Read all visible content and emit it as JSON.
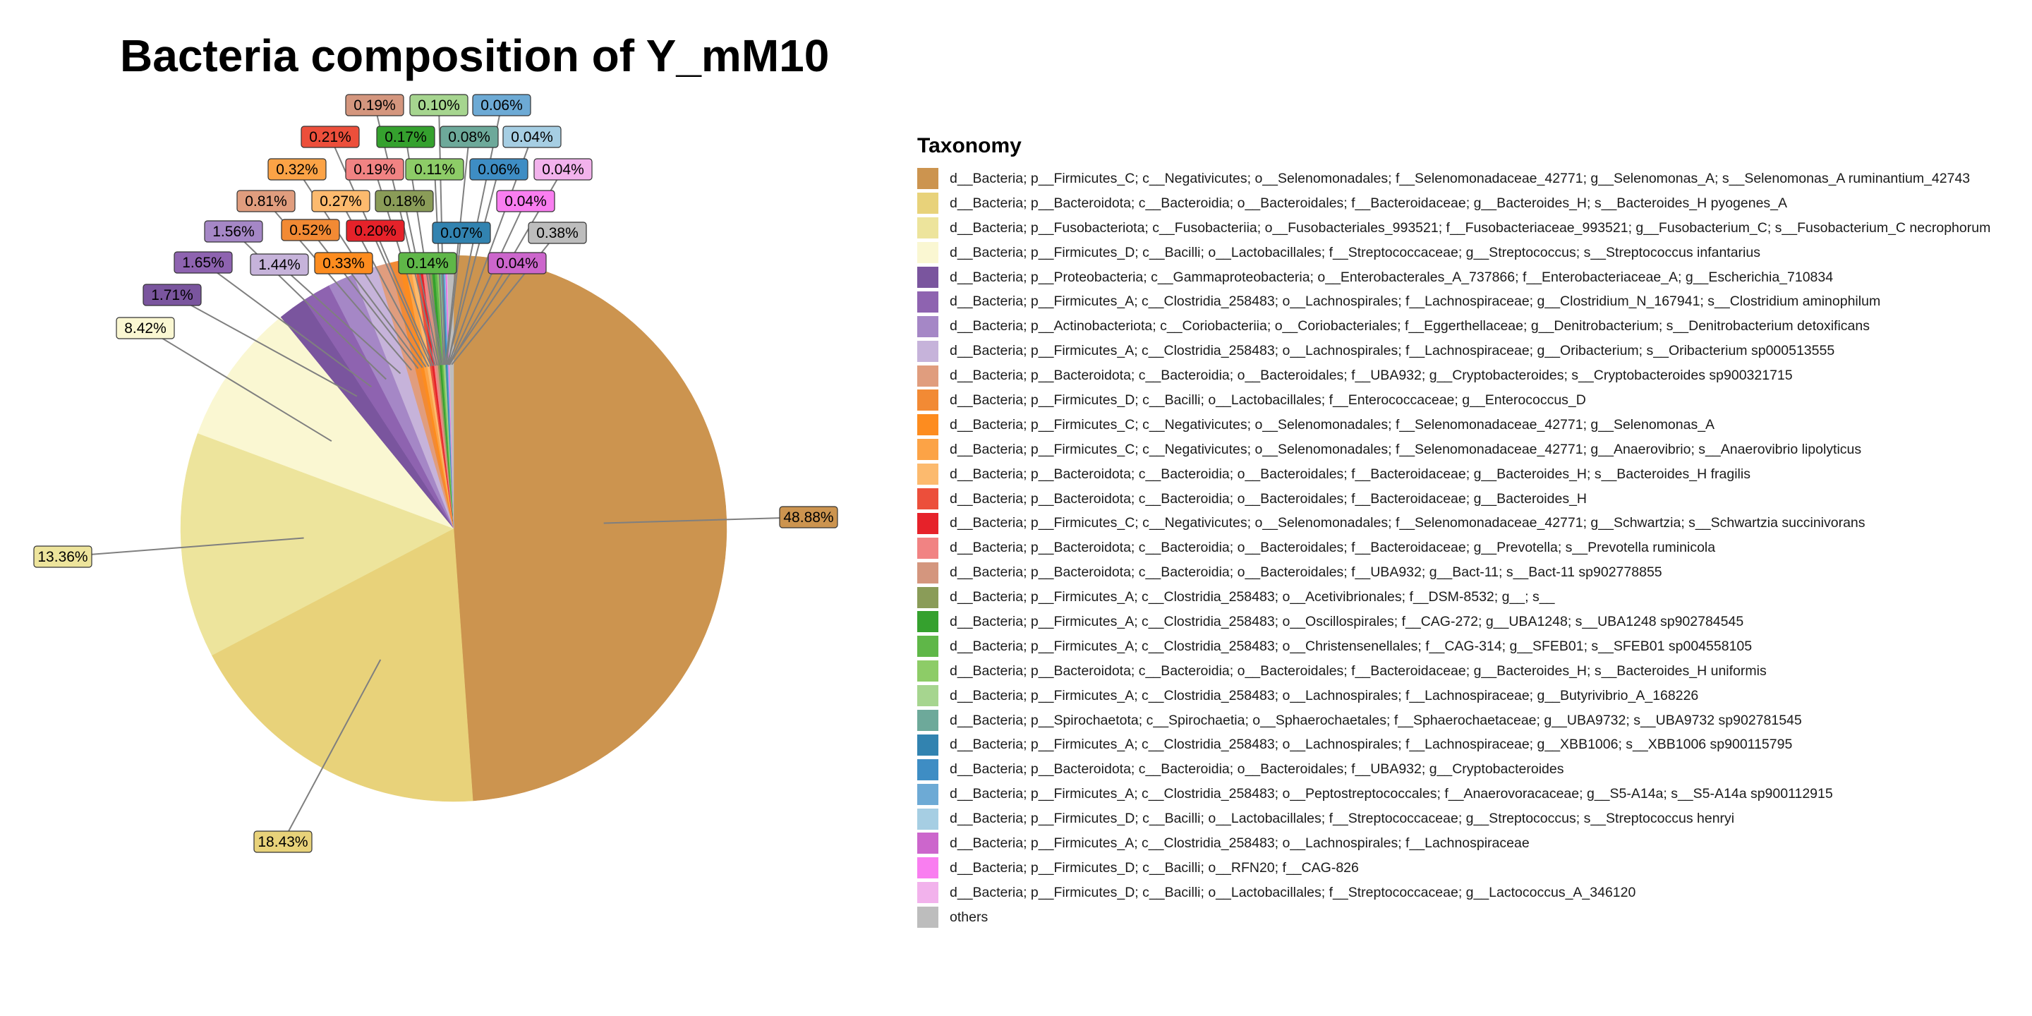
{
  "chart_data": {
    "type": "pie",
    "title": "Bacteria composition of Y_mM10",
    "legend_title": "Taxonomy",
    "legend_position": "right",
    "slices": [
      {
        "name": "d__Bacteria; p__Firmicutes_C; c__Negativicutes; o__Selenomonadales; f__Selenomonadaceae_42771; g__Selenomonas_A; s__Selenomonas_A ruminantium_42743",
        "value": 48.88,
        "label": "48.88%",
        "color": "#CC944F"
      },
      {
        "name": "d__Bacteria; p__Bacteroidota; c__Bacteroidia; o__Bacteroidales; f__Bacteroidaceae; g__Bacteroides_H; s__Bacteroides_H pyogenes_A",
        "value": 18.43,
        "label": "18.43%",
        "color": "#E8D27A"
      },
      {
        "name": "d__Bacteria; p__Fusobacteriota; c__Fusobacteriia; o__Fusobacteriales_993521; f__Fusobacteriaceae_993521; g__Fusobacterium_C; s__Fusobacterium_C necrophorum",
        "value": 13.36,
        "label": "13.36%",
        "color": "#EDE49C"
      },
      {
        "name": "d__Bacteria; p__Firmicutes_D; c__Bacilli; o__Lactobacillales; f__Streptococcaceae; g__Streptococcus; s__Streptococcus infantarius",
        "value": 8.42,
        "label": "8.42%",
        "color": "#FAF7D2"
      },
      {
        "name": "d__Bacteria; p__Proteobacteria; c__Gammaproteobacteria; o__Enterobacterales_A_737866; f__Enterobacteriaceae_A; g__Escherichia_710834",
        "value": 1.71,
        "label": "1.71%",
        "color": "#7A559E"
      },
      {
        "name": "d__Bacteria; p__Firmicutes_A; c__Clostridia_258483; o__Lachnospirales; f__Lachnospiraceae; g__Clostridium_N_167941; s__Clostridium aminophilum",
        "value": 1.65,
        "label": "1.65%",
        "color": "#8E63B0"
      },
      {
        "name": "d__Bacteria; p__Actinobacteriota; c__Coriobacteriia; o__Coriobacteriales; f__Eggerthellaceae; g__Denitrobacterium; s__Denitrobacterium detoxificans",
        "value": 1.56,
        "label": "1.56%",
        "color": "#A587C6"
      },
      {
        "name": "d__Bacteria; p__Firmicutes_A; c__Clostridia_258483; o__Lachnospirales; f__Lachnospiraceae; g__Oribacterium; s__Oribacterium sp000513555",
        "value": 1.44,
        "label": "1.44%",
        "color": "#C6B3DA"
      },
      {
        "name": "d__Bacteria; p__Bacteroidota; c__Bacteroidia; o__Bacteroidales; f__UBA932; g__Cryptobacteroides; s__Cryptobacteroides sp900321715",
        "value": 0.81,
        "label": "0.81%",
        "color": "#E09D7E"
      },
      {
        "name": "d__Bacteria; p__Firmicutes_D; c__Bacilli; o__Lactobacillales; f__Enterococcaceae; g__Enterococcus_D",
        "value": 0.52,
        "label": "0.52%",
        "color": "#F28A34"
      },
      {
        "name": "d__Bacteria; p__Firmicutes_C; c__Negativicutes; o__Selenomonadales; f__Selenomonadaceae_42771; g__Selenomonas_A",
        "value": 0.33,
        "label": "0.33%",
        "color": "#FD8C1F"
      },
      {
        "name": "d__Bacteria; p__Firmicutes_C; c__Negativicutes; o__Selenomonadales; f__Selenomonadaceae_42771; g__Anaerovibrio; s__Anaerovibrio lipolyticus",
        "value": 0.32,
        "label": "0.32%",
        "color": "#FCA346"
      },
      {
        "name": "d__Bacteria; p__Bacteroidota; c__Bacteroidia; o__Bacteroidales; f__Bacteroidaceae; g__Bacteroides_H; s__Bacteroides_H fragilis",
        "value": 0.27,
        "label": "0.27%",
        "color": "#FCBA6E"
      },
      {
        "name": "d__Bacteria; p__Bacteroidota; c__Bacteroidia; o__Bacteroidales; f__Bacteroidaceae; g__Bacteroides_H",
        "value": 0.21,
        "label": "0.21%",
        "color": "#EC4F3B"
      },
      {
        "name": "d__Bacteria; p__Firmicutes_C; c__Negativicutes; o__Selenomonadales; f__Selenomonadaceae_42771; g__Schwartzia; s__Schwartzia succinivorans",
        "value": 0.2,
        "label": "0.20%",
        "color": "#E6222A"
      },
      {
        "name": "d__Bacteria; p__Bacteroidota; c__Bacteroidia; o__Bacteroidales; f__Bacteroidaceae; g__Prevotella; s__Prevotella ruminicola",
        "value": 0.19,
        "label": "0.19%",
        "color": "#F18383"
      },
      {
        "name": "d__Bacteria; p__Bacteroidota; c__Bacteroidia; o__Bacteroidales; f__UBA932; g__Bact-11; s__Bact-11 sp902778855",
        "value": 0.19,
        "label": "0.19%",
        "color": "#D4967E"
      },
      {
        "name": "d__Bacteria; p__Firmicutes_A; c__Clostridia_258483; o__Acetivibrionales; f__DSM-8532; g__; s__",
        "value": 0.18,
        "label": "0.18%",
        "color": "#8A9C58"
      },
      {
        "name": "d__Bacteria; p__Firmicutes_A; c__Clostridia_258483; o__Oscillospirales; f__CAG-272; g__UBA1248; s__UBA1248 sp902784545",
        "value": 0.17,
        "label": "0.17%",
        "color": "#35A12E"
      },
      {
        "name": "d__Bacteria; p__Firmicutes_A; c__Clostridia_258483; o__Christensenellales; f__CAG-314; g__SFEB01; s__SFEB01 sp004558105",
        "value": 0.14,
        "label": "0.14%",
        "color": "#5FB748"
      },
      {
        "name": "d__Bacteria; p__Bacteroidota; c__Bacteroidia; o__Bacteroidales; f__Bacteroidaceae; g__Bacteroides_H; s__Bacteroides_H uniformis",
        "value": 0.11,
        "label": "0.11%",
        "color": "#8DCC67"
      },
      {
        "name": "d__Bacteria; p__Firmicutes_A; c__Clostridia_258483; o__Lachnospirales; f__Lachnospiraceae; g__Butyrivibrio_A_168226",
        "value": 0.1,
        "label": "0.10%",
        "color": "#A6D58F"
      },
      {
        "name": "d__Bacteria; p__Spirochaetota; c__Spirochaetia; o__Sphaerochaetales; f__Sphaerochaetaceae; g__UBA9732; s__UBA9732 sp902781545",
        "value": 0.08,
        "label": "0.08%",
        "color": "#6DA99A"
      },
      {
        "name": "d__Bacteria; p__Firmicutes_A; c__Clostridia_258483; o__Lachnospirales; f__Lachnospiraceae; g__XBB1006; s__XBB1006 sp900115795",
        "value": 0.07,
        "label": "0.07%",
        "color": "#3283B0"
      },
      {
        "name": "d__Bacteria; p__Bacteroidota; c__Bacteroidia; o__Bacteroidales; f__UBA932; g__Cryptobacteroides",
        "value": 0.06,
        "label": "0.06%",
        "color": "#3E8DC4"
      },
      {
        "name": "d__Bacteria; p__Firmicutes_A; c__Clostridia_258483; o__Peptostreptococcales; f__Anaerovoracaceae; g__S5-A14a; s__S5-A14a sp900112915",
        "value": 0.06,
        "label": "0.06%",
        "color": "#6DAAD5"
      },
      {
        "name": "d__Bacteria; p__Firmicutes_D; c__Bacilli; o__Lactobacillales; f__Streptococcaceae; g__Streptococcus; s__Streptococcus henryi",
        "value": 0.04,
        "label": "0.04%",
        "color": "#A6CEE3"
      },
      {
        "name": "d__Bacteria; p__Firmicutes_A; c__Clostridia_258483; o__Lachnospirales; f__Lachnospiraceae",
        "value": 0.04,
        "label": "0.04%",
        "color": "#CC66CC"
      },
      {
        "name": "d__Bacteria; p__Firmicutes_D; c__Bacilli; o__RFN20; f__CAG-826",
        "value": 0.04,
        "label": "0.04%",
        "color": "#F97EF0"
      },
      {
        "name": "d__Bacteria; p__Firmicutes_D; c__Bacilli; o__Lactobacillales; f__Streptococcaceae; g__Lactococcus_A_346120",
        "value": 0.04,
        "label": "0.04%",
        "color": "#F2B2EC"
      },
      {
        "name": "others",
        "value": 0.38,
        "label": "0.38%",
        "color": "#BDBDBD"
      }
    ]
  }
}
